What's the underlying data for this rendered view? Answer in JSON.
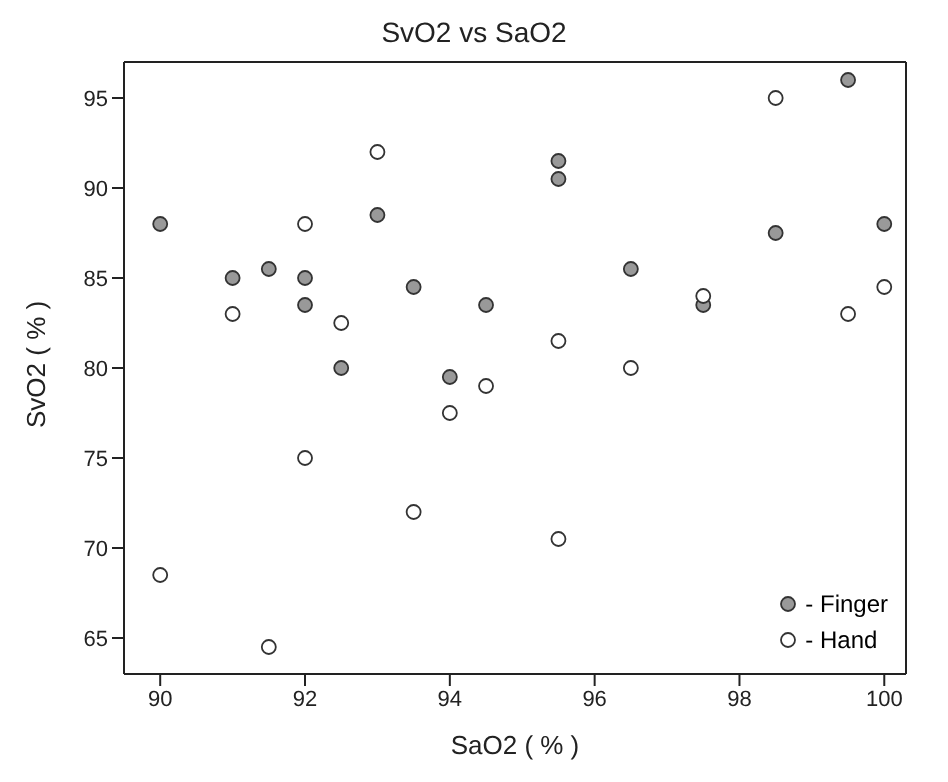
{
  "chart_data": {
    "type": "scatter",
    "title": "SvO2  vs  SaO2",
    "xlabel": "SaO2 ( % )",
    "ylabel": "SvO2 ( % )",
    "xlim": [
      89.5,
      100.3
    ],
    "xticks": [
      90,
      92,
      94,
      96,
      98,
      100
    ],
    "ylim": [
      63,
      97
    ],
    "yticks": [
      65,
      70,
      75,
      80,
      85,
      90,
      95
    ],
    "grid": false,
    "legend": "bottom right",
    "marker": "circle",
    "series": [
      {
        "name": "- Finger",
        "color": "#999999",
        "x": [
          90,
          91,
          91.5,
          92,
          92,
          92.5,
          93,
          93.5,
          94,
          94.5,
          95.5,
          95.5,
          96.5,
          97.5,
          98.5,
          99.5,
          100
        ],
        "values": [
          88,
          85,
          85.5,
          85,
          83.5,
          80,
          88.5,
          84.5,
          79.5,
          83.5,
          91.5,
          90.5,
          85.5,
          83.5,
          87.5,
          96,
          88
        ]
      },
      {
        "name": "- Hand",
        "color": "#ffffff",
        "x": [
          90,
          91,
          91.5,
          92,
          92,
          92.5,
          93,
          93.5,
          94,
          94.5,
          95.5,
          95.5,
          96.5,
          97.5,
          98.5,
          99.5,
          100
        ],
        "values": [
          68.5,
          83,
          64.5,
          88,
          75,
          82.5,
          92,
          72,
          77.5,
          79,
          81.5,
          70.5,
          80,
          84,
          95,
          83,
          84.5
        ]
      }
    ]
  }
}
